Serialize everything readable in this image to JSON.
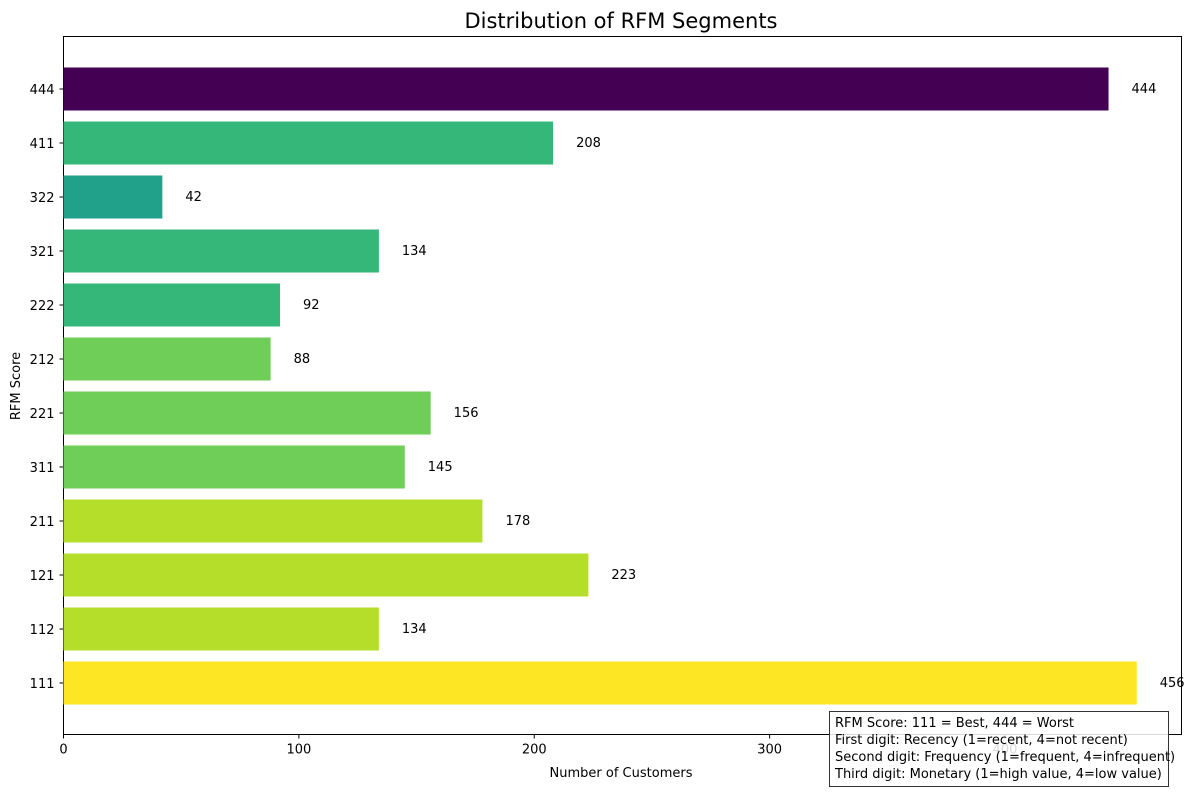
{
  "chart_data": {
    "type": "bar",
    "orientation": "horizontal",
    "title": "Distribution of RFM Segments",
    "xlabel": "Number of Customers",
    "ylabel": "RFM Score",
    "xlim": [
      0,
      475
    ],
    "xticks": [
      0,
      100,
      200,
      300,
      400
    ],
    "grid": false,
    "categories": [
      "444",
      "411",
      "322",
      "321",
      "222",
      "212",
      "221",
      "311",
      "211",
      "121",
      "112",
      "111"
    ],
    "values": [
      444,
      208,
      42,
      134,
      92,
      88,
      156,
      145,
      178,
      223,
      134,
      456
    ],
    "colors": [
      "#440154",
      "#35b779",
      "#21a08a",
      "#35b779",
      "#35b779",
      "#6ece58",
      "#6ece58",
      "#6ece58",
      "#b5de2b",
      "#b5de2b",
      "#b5de2b",
      "#fde725"
    ],
    "annotation_lines": [
      "RFM Score: 111 = Best, 444 = Worst",
      "First digit: Recency (1=recent, 4=not recent)",
      "Second digit: Frequency (1=frequent, 4=infrequent)",
      "Third digit: Monetary (1=high value, 4=low value)"
    ],
    "annotation_placement": "bottom-right"
  }
}
